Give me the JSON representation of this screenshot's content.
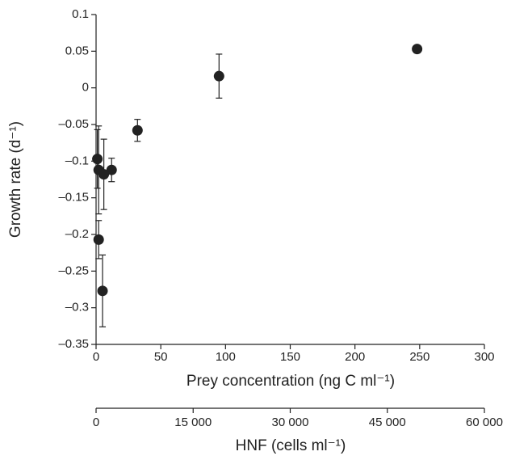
{
  "chart_data": {
    "type": "scatter",
    "ylabel": "Growth rate (d⁻¹)",
    "xlabel": "Prey concentration (ng C ml⁻¹)",
    "x2label": "HNF (cells ml⁻¹)",
    "xlim": [
      0,
      300
    ],
    "xticks": [
      0,
      50,
      100,
      150,
      200,
      250,
      300
    ],
    "ylim": [
      -0.35,
      0.1
    ],
    "yticks": [
      {
        "value": -0.35,
        "label": "–0.35"
      },
      {
        "value": -0.3,
        "label": "–0.3"
      },
      {
        "value": -0.25,
        "label": "–0.25"
      },
      {
        "value": -0.2,
        "label": "–0.2"
      },
      {
        "value": -0.15,
        "label": "–0.15"
      },
      {
        "value": -0.1,
        "label": "–0.1"
      },
      {
        "value": -0.05,
        "label": "–0.05"
      },
      0,
      0.05,
      0.1
    ],
    "x2lim": [
      0,
      60000
    ],
    "x2ticks": [
      0,
      {
        "value": 15000,
        "label": "15 000"
      },
      {
        "value": 30000,
        "label": "30 000"
      },
      {
        "value": 45000,
        "label": "45 000"
      },
      {
        "value": 60000,
        "label": "60 000"
      }
    ],
    "series": [
      {
        "color": "#222222",
        "x": [
          248,
          95,
          32,
          12,
          6,
          1,
          2,
          2,
          5
        ],
        "values": [
          0.053,
          0.016,
          -0.058,
          -0.112,
          -0.118,
          -0.097,
          -0.112,
          -0.207,
          -0.277
        ],
        "errors": [
          0.002,
          0.03,
          0.015,
          0.016,
          0.048,
          0.04,
          0.06,
          0.026,
          0.049
        ]
      }
    ]
  }
}
